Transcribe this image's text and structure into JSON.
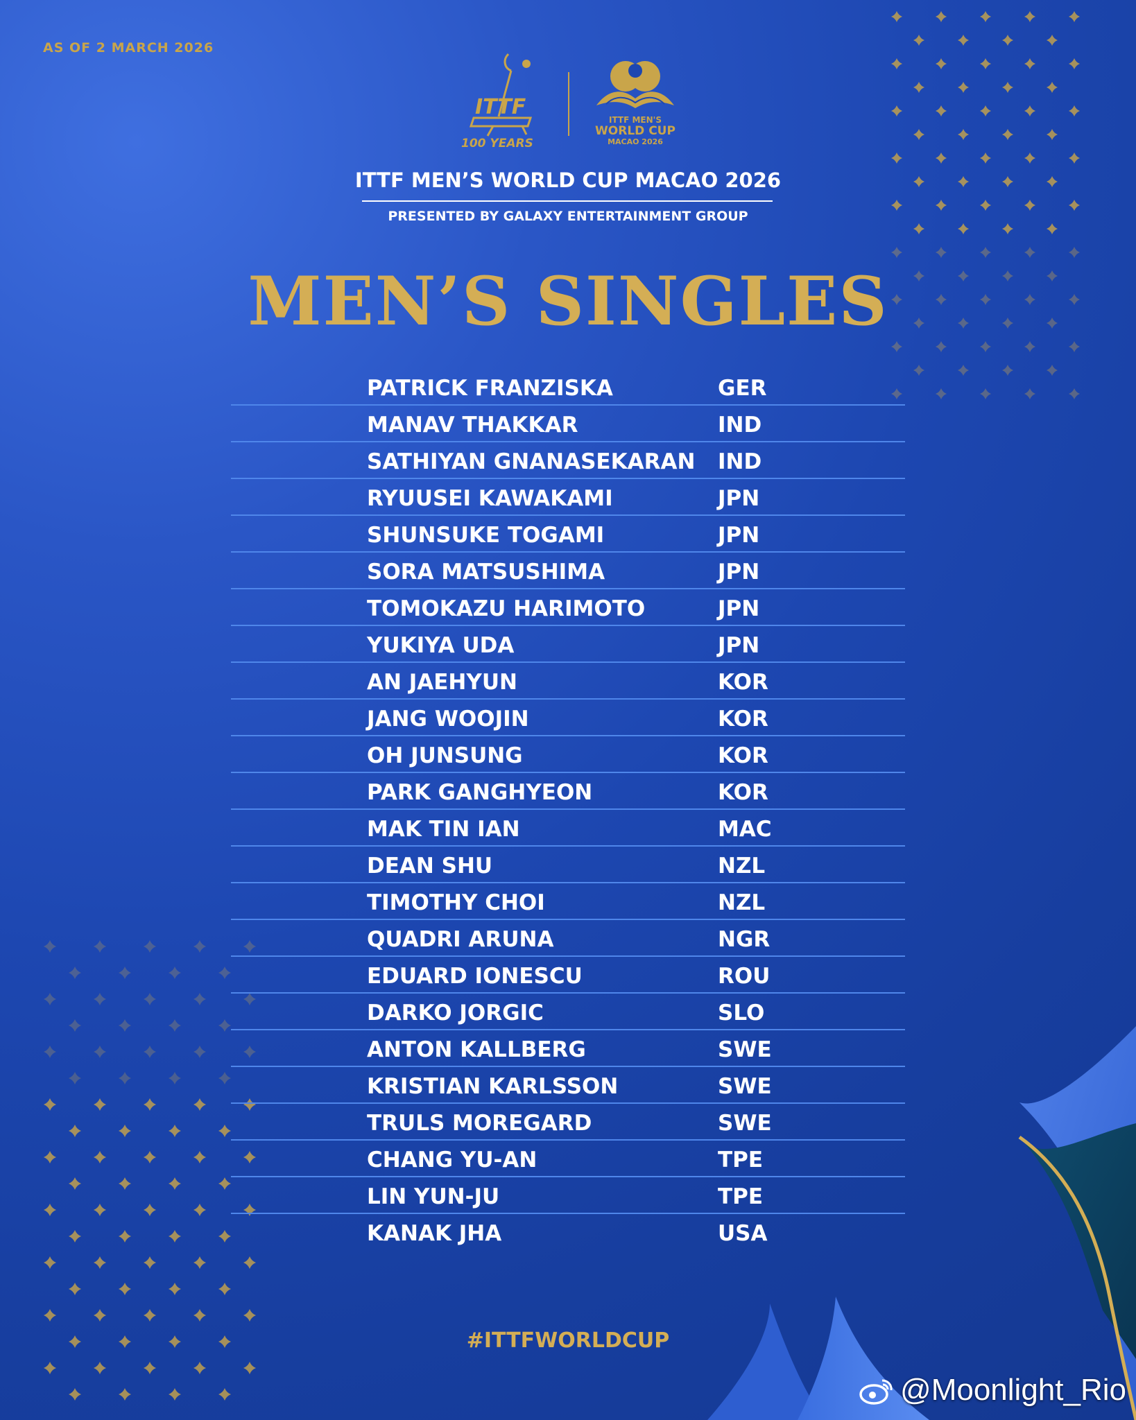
{
  "as_of": "AS OF 2 MARCH 2026",
  "logos": {
    "ittf_text": "ITTF",
    "ittf_years": "100 YEARS",
    "worldcup_line1": "ITTF MEN'S",
    "worldcup_line2": "WORLD CUP",
    "worldcup_line3": "MACAO 2026"
  },
  "event_title": "ITTF MEN’S WORLD CUP MACAO 2026",
  "presented_by": "PRESENTED BY GALAXY ENTERTAINMENT GROUP",
  "main_title": "MEN’S SINGLES",
  "players": [
    {
      "name": "PATRICK FRANZISKA",
      "country": "GER"
    },
    {
      "name": "MANAV THAKKAR",
      "country": "IND"
    },
    {
      "name": "SATHIYAN GNANASEKARAN",
      "country": "IND"
    },
    {
      "name": "RYUUSEI KAWAKAMI",
      "country": "JPN"
    },
    {
      "name": "SHUNSUKE TOGAMI",
      "country": "JPN"
    },
    {
      "name": "SORA MATSUSHIMA",
      "country": "JPN"
    },
    {
      "name": "TOMOKAZU HARIMOTO",
      "country": "JPN"
    },
    {
      "name": "YUKIYA UDA",
      "country": "JPN"
    },
    {
      "name": "AN JAEHYUN",
      "country": "KOR"
    },
    {
      "name": "JANG WOOJIN",
      "country": "KOR"
    },
    {
      "name": "OH JUNSUNG",
      "country": "KOR"
    },
    {
      "name": "PARK GANGHYEON",
      "country": "KOR"
    },
    {
      "name": "MAK TIN IAN",
      "country": "MAC"
    },
    {
      "name": "DEAN SHU",
      "country": "NZL"
    },
    {
      "name": "TIMOTHY CHOI",
      "country": "NZL"
    },
    {
      "name": "QUADRI ARUNA",
      "country": "NGR"
    },
    {
      "name": "EDUARD IONESCU",
      "country": "ROU"
    },
    {
      "name": "DARKO JORGIC",
      "country": "SLO"
    },
    {
      "name": "ANTON KALLBERG",
      "country": "SWE"
    },
    {
      "name": "KRISTIAN KARLSSON",
      "country": "SWE"
    },
    {
      "name": "TRULS MOREGARD",
      "country": "SWE"
    },
    {
      "name": "CHANG YU-AN",
      "country": "TPE"
    },
    {
      "name": "LIN YUN-JU",
      "country": "TPE"
    },
    {
      "name": "KANAK JHA",
      "country": "USA"
    }
  ],
  "hashtag": "#ITTFWORLDCUP",
  "watermark": "@Moonlight_Rio",
  "colors": {
    "gold": "#d4ae55",
    "background": "#1d47b1",
    "divider": "#4f86ea",
    "text": "#ffffff"
  }
}
